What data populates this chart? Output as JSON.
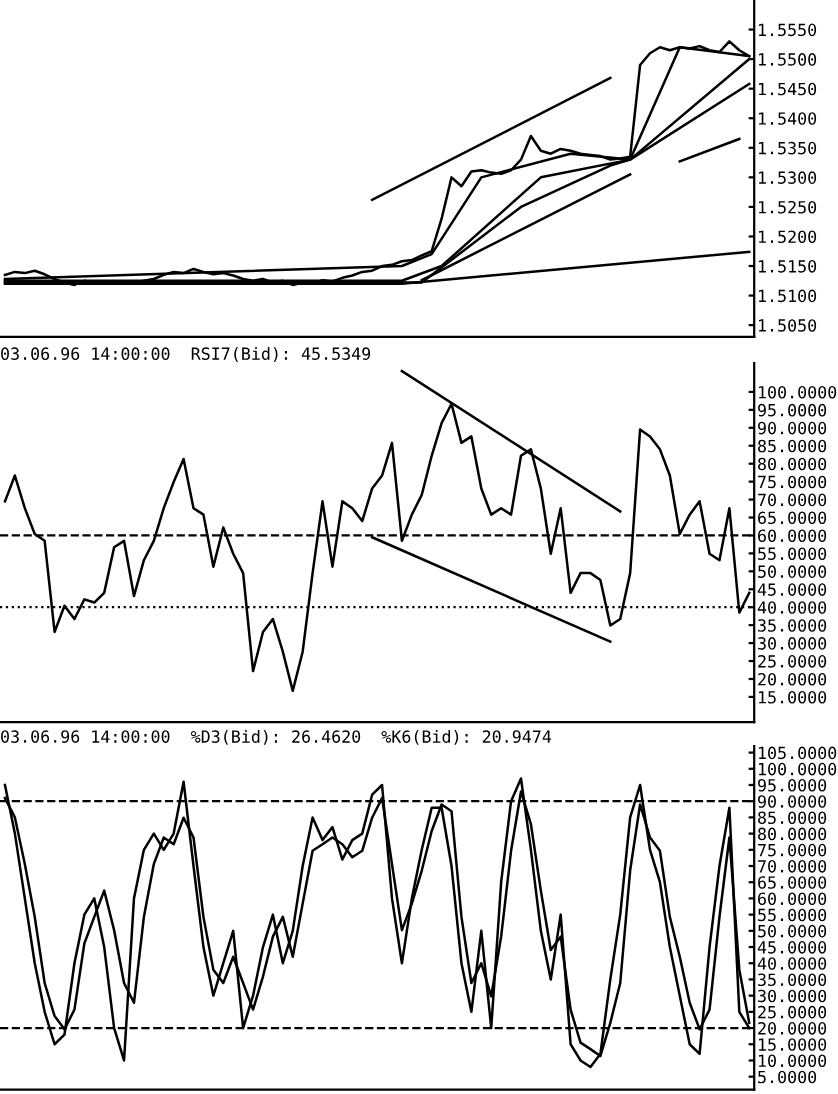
{
  "chart_data": [
    {
      "type": "line",
      "categories": [
        null,
        null,
        null,
        null,
        null,
        null,
        null,
        null,
        null,
        null,
        null,
        null,
        null,
        null,
        null,
        null,
        null,
        null,
        null,
        null,
        null,
        null,
        null,
        null,
        null,
        null,
        null,
        null,
        null,
        null,
        null,
        null,
        null,
        null,
        null,
        null,
        null,
        null,
        null,
        null,
        null,
        null,
        null,
        null,
        null,
        null,
        null,
        null,
        null,
        null,
        null,
        null,
        null,
        null,
        null,
        null,
        null,
        null,
        null,
        null,
        null,
        null,
        null,
        null,
        null,
        null,
        null,
        null,
        null,
        null,
        null,
        null,
        null,
        null,
        null,
        null
      ],
      "series": [
        {
          "color": "#000000",
          "values": [
            1.5135,
            1.514,
            1.5138,
            1.5142,
            1.5136,
            1.5128,
            1.5122,
            1.5118,
            1.5125,
            1.5122,
            1.5124,
            1.512,
            1.5122,
            1.512,
            1.5125,
            1.5128,
            1.5135,
            1.514,
            1.5138,
            1.5145,
            1.514,
            1.5136,
            1.5138,
            1.5134,
            1.5128,
            1.5125,
            1.5128,
            1.5122,
            1.5125,
            1.5118,
            1.5122,
            1.512,
            1.5126,
            1.5124,
            1.513,
            1.5134,
            1.514,
            1.5142,
            1.515,
            1.5152,
            1.5158,
            1.516,
            1.5168,
            1.5175,
            1.523,
            1.53,
            1.5285,
            1.531,
            1.5312,
            1.5308,
            1.5306,
            1.5312,
            1.533,
            1.537,
            1.5345,
            1.534,
            1.5348,
            1.5345,
            1.534,
            1.5338,
            1.5336,
            1.533,
            1.5332,
            1.5335,
            1.549,
            1.551,
            1.552,
            1.5515,
            1.552,
            1.5518,
            1.5522,
            1.5515,
            1.5512,
            1.553,
            1.5515,
            1.5505
          ]
        },
        {
          "color": "#000000",
          "values": [
            1.5128,
            null,
            null,
            null,
            null,
            null,
            null,
            null,
            null,
            null,
            null,
            null,
            null,
            null,
            null,
            null,
            null,
            null,
            null,
            null,
            null,
            null,
            null,
            null,
            null,
            null,
            null,
            null,
            null,
            null,
            null,
            null,
            null,
            null,
            null,
            null,
            null,
            null,
            null,
            null,
            1.515,
            null,
            null,
            1.517,
            null,
            null,
            null,
            null,
            1.53,
            null,
            null,
            null,
            null,
            null,
            null,
            null,
            null,
            1.534,
            null,
            null,
            null,
            null,
            null,
            1.533,
            null,
            null,
            null,
            null,
            1.552,
            null,
            null,
            null,
            null,
            null,
            null,
            1.5505
          ]
        },
        {
          "color": "#000000",
          "values": [
            1.5125,
            null,
            null,
            null,
            null,
            null,
            null,
            null,
            null,
            null,
            null,
            null,
            null,
            null,
            null,
            null,
            null,
            null,
            null,
            null,
            null,
            null,
            null,
            null,
            null,
            null,
            null,
            null,
            null,
            null,
            null,
            null,
            null,
            null,
            null,
            null,
            null,
            null,
            null,
            null,
            1.5125,
            null,
            null,
            null,
            1.515,
            null,
            null,
            null,
            null,
            null,
            null,
            null,
            null,
            null,
            1.53,
            null,
            null,
            null,
            null,
            null,
            null,
            null,
            null,
            1.533,
            null,
            null,
            null,
            null,
            null,
            null,
            null,
            null,
            null,
            null,
            null,
            1.55
          ]
        },
        {
          "color": "#000000",
          "values": [
            1.5122,
            null,
            null,
            null,
            null,
            null,
            null,
            null,
            null,
            null,
            null,
            null,
            null,
            null,
            null,
            null,
            null,
            null,
            null,
            null,
            null,
            null,
            null,
            null,
            null,
            null,
            null,
            null,
            null,
            null,
            null,
            null,
            null,
            null,
            null,
            null,
            null,
            null,
            null,
            null,
            null,
            null,
            1.5122,
            null,
            null,
            null,
            null,
            null,
            null,
            null,
            null,
            null,
            1.525,
            null,
            null,
            null,
            null,
            null,
            null,
            null,
            null,
            1.532,
            null,
            1.533,
            null,
            null,
            null,
            null,
            null,
            null,
            null,
            null,
            null,
            null,
            null,
            1.5458
          ]
        },
        {
          "color": "#000000",
          "values": [
            1.512,
            null,
            null,
            null,
            null,
            null,
            null,
            null,
            null,
            null,
            null,
            null,
            null,
            null,
            null,
            null,
            null,
            null,
            null,
            null,
            null,
            null,
            null,
            null,
            null,
            null,
            null,
            null,
            null,
            null,
            null,
            null,
            null,
            null,
            null,
            null,
            null,
            null,
            null,
            null,
            1.512,
            null,
            null,
            null,
            null,
            null,
            null,
            null,
            null,
            null,
            null,
            null,
            null,
            null,
            null,
            null,
            null,
            null,
            null,
            null,
            null,
            null,
            null,
            null,
            null,
            null,
            null,
            null,
            null,
            null,
            null,
            null,
            null,
            null,
            null,
            1.5174
          ]
        },
        {
          "color": "#000000",
          "values": [
            null,
            null,
            null,
            null,
            null,
            null,
            null,
            null,
            null,
            null,
            null,
            null,
            null,
            null,
            null,
            null,
            null,
            null,
            null,
            null,
            null,
            null,
            null,
            null,
            null,
            null,
            null,
            null,
            null,
            null,
            null,
            null,
            null,
            null,
            null,
            null,
            null,
            1.5262,
            null,
            null,
            null,
            null,
            null,
            null,
            null,
            null,
            null,
            null,
            null,
            null,
            null,
            null,
            null,
            null,
            null,
            null,
            null,
            null,
            null,
            null,
            null,
            1.5468,
            null,
            null,
            null,
            null,
            null,
            null,
            null,
            null,
            null,
            null,
            null,
            null,
            null,
            null
          ]
        },
        {
          "color": "#000000",
          "values": [
            null,
            null,
            null,
            null,
            null,
            null,
            null,
            null,
            null,
            null,
            null,
            null,
            null,
            null,
            null,
            null,
            null,
            null,
            null,
            null,
            null,
            null,
            null,
            null,
            null,
            null,
            null,
            null,
            null,
            null,
            null,
            null,
            null,
            null,
            null,
            null,
            null,
            null,
            null,
            null,
            null,
            null,
            1.5126,
            null,
            null,
            null,
            null,
            null,
            null,
            null,
            null,
            null,
            null,
            null,
            null,
            null,
            null,
            null,
            null,
            null,
            null,
            null,
            null,
            1.5305,
            null,
            null,
            null,
            null,
            null,
            null,
            null,
            null,
            null,
            null,
            null,
            null
          ]
        },
        {
          "color": "#000000",
          "values": [
            null,
            null,
            null,
            null,
            null,
            null,
            null,
            null,
            null,
            null,
            null,
            null,
            null,
            null,
            null,
            null,
            null,
            null,
            null,
            null,
            null,
            null,
            null,
            null,
            null,
            null,
            null,
            null,
            null,
            null,
            null,
            null,
            null,
            null,
            null,
            null,
            null,
            null,
            null,
            null,
            null,
            null,
            null,
            null,
            null,
            null,
            null,
            null,
            null,
            null,
            null,
            null,
            null,
            null,
            null,
            null,
            null,
            null,
            null,
            null,
            null,
            null,
            null,
            null,
            null,
            null,
            null,
            null,
            1.5327,
            null,
            null,
            null,
            null,
            null,
            1.5365,
            null
          ]
        }
      ],
      "ylim": [
        1.503,
        1.56
      ],
      "yticks": [
        {
          "value": 1.505,
          "label": "1.5050"
        },
        {
          "value": 1.51,
          "label": "1.5100"
        },
        {
          "value": 1.515,
          "label": "1.5150"
        },
        {
          "value": 1.52,
          "label": "1.5200"
        },
        {
          "value": 1.525,
          "label": "1.5250"
        },
        {
          "value": 1.53,
          "label": "1.5300"
        },
        {
          "value": 1.535,
          "label": "1.5350"
        },
        {
          "value": 1.54,
          "label": "1.5400"
        },
        {
          "value": 1.545,
          "label": "1.5450"
        },
        {
          "value": 1.55,
          "label": "1.5500"
        },
        {
          "value": 1.555,
          "label": "1.5550"
        }
      ],
      "tick_labels": "y"
    },
    {
      "type": "line",
      "title": "03.06.96 14:00:00  RSI7(Bid): 45.5349",
      "categories": [
        null,
        null,
        null,
        null,
        null,
        null,
        null,
        null,
        null,
        null,
        null,
        null,
        null,
        null,
        null,
        null,
        null,
        null,
        null,
        null,
        null,
        null,
        null,
        null,
        null,
        null,
        null,
        null,
        null,
        null,
        null,
        null,
        null,
        null,
        null,
        null,
        null,
        null,
        null,
        null,
        null,
        null,
        null,
        null,
        null,
        null,
        null,
        null,
        null,
        null,
        null,
        null,
        null,
        null,
        null,
        null,
        null,
        null,
        null,
        null,
        null,
        null,
        null,
        null,
        null,
        null,
        null,
        null,
        null,
        null,
        null,
        null,
        null,
        null,
        null,
        null
      ],
      "series": [
        {
          "color": "#000000",
          "values": [
            69.5,
            76.7,
            67.6,
            60.4,
            58.5,
            33.1,
            40.4,
            36.7,
            42.2,
            41.3,
            44,
            56.7,
            58.5,
            43.1,
            53.1,
            58.5,
            67.6,
            74.9,
            81.3,
            67.6,
            65.8,
            51.3,
            62.2,
            54.9,
            49.5,
            22.2,
            33.1,
            36.7,
            27.6,
            16.7,
            27.6,
            49.5,
            69.5,
            51.3,
            69.5,
            67.6,
            64,
            73.1,
            76.7,
            85.8,
            58.5,
            65.8,
            71.3,
            82.2,
            91.3,
            96.7,
            85.8,
            87.6,
            73.1,
            65.8,
            67.6,
            65.8,
            82.2,
            84,
            73.1,
            54.9,
            67.6,
            44,
            49.5,
            49.5,
            47.6,
            34.9,
            36.7,
            49.5,
            89.5,
            87.6,
            84,
            76.7,
            60.4,
            65.8,
            69.5,
            54.9,
            53.1,
            67.6,
            38.5,
            44
          ]
        },
        {
          "color": "#000000",
          "values": [
            null,
            null,
            null,
            null,
            null,
            null,
            null,
            null,
            null,
            null,
            null,
            null,
            null,
            null,
            null,
            null,
            null,
            null,
            null,
            null,
            null,
            null,
            null,
            null,
            null,
            null,
            null,
            null,
            null,
            null,
            null,
            null,
            null,
            null,
            null,
            null,
            null,
            null,
            null,
            null,
            105.8,
            null,
            null,
            null,
            null,
            null,
            null,
            null,
            null,
            null,
            null,
            null,
            null,
            null,
            null,
            null,
            null,
            null,
            null,
            null,
            null,
            null,
            66.7,
            null,
            null,
            null,
            null,
            null,
            null,
            null,
            null,
            null,
            null,
            null,
            null,
            null
          ]
        },
        {
          "color": "#000000",
          "values": [
            null,
            null,
            null,
            null,
            null,
            null,
            null,
            null,
            null,
            null,
            null,
            null,
            null,
            null,
            null,
            null,
            null,
            null,
            null,
            null,
            null,
            null,
            null,
            null,
            null,
            null,
            null,
            null,
            null,
            null,
            null,
            null,
            null,
            null,
            null,
            null,
            null,
            59.5,
            null,
            null,
            null,
            null,
            null,
            null,
            null,
            null,
            null,
            null,
            null,
            null,
            null,
            null,
            null,
            null,
            null,
            null,
            null,
            null,
            null,
            null,
            null,
            30.4,
            null,
            null,
            null,
            null,
            null,
            null,
            null,
            null,
            null,
            null,
            null,
            null,
            null,
            null
          ]
        }
      ],
      "ref_lines": [
        {
          "axis": "y",
          "value": 60,
          "color": "#000000",
          "line_style": "dashed"
        },
        {
          "axis": "y",
          "value": 40,
          "color": "#000000",
          "line_style": "dotted"
        }
      ],
      "ylim": [
        8,
        108
      ],
      "yticks": [
        {
          "value": 15,
          "label": "15.0000"
        },
        {
          "value": 20,
          "label": "20.0000"
        },
        {
          "value": 25,
          "label": "25.0000"
        },
        {
          "value": 30,
          "label": "30.0000"
        },
        {
          "value": 35,
          "label": "35.0000"
        },
        {
          "value": 40,
          "label": "40.0000"
        },
        {
          "value": 45,
          "label": "45.0000"
        },
        {
          "value": 50,
          "label": "50.0000"
        },
        {
          "value": 55,
          "label": "55.0000"
        },
        {
          "value": 60,
          "label": "60.0000"
        },
        {
          "value": 65,
          "label": "65.0000"
        },
        {
          "value": 70,
          "label": "70.0000"
        },
        {
          "value": 75,
          "label": "75.0000"
        },
        {
          "value": 80,
          "label": "80.0000"
        },
        {
          "value": 85,
          "label": "85.0000"
        },
        {
          "value": 90,
          "label": "90.0000"
        },
        {
          "value": 95,
          "label": "95.0000"
        },
        {
          "value": 100,
          "label": "100.0000"
        }
      ],
      "tick_labels": "y"
    },
    {
      "type": "line",
      "title": "03.06.96 14:00:00  %D3(Bid): 26.4620  %K6(Bid): 20.9474",
      "categories": [
        null,
        null,
        null,
        null,
        null,
        null,
        null,
        null,
        null,
        null,
        null,
        null,
        null,
        null,
        null,
        null,
        null,
        null,
        null,
        null,
        null,
        null,
        null,
        null,
        null,
        null,
        null,
        null,
        null,
        null,
        null,
        null,
        null,
        null,
        null,
        null,
        null,
        null,
        null,
        null,
        null,
        null,
        null,
        null,
        null,
        null,
        null,
        null,
        null,
        null,
        null,
        null,
        null,
        null,
        null,
        null,
        null,
        null,
        null,
        null,
        null,
        null,
        null,
        null,
        null,
        null,
        null,
        null,
        null,
        null,
        null,
        null,
        null,
        null,
        null,
        null
      ],
      "series": [
        {
          "color": "#000000",
          "values": [
            91,
            85,
            70.6,
            54.3,
            33.9,
            23.7,
            19.6,
            25.7,
            46.1,
            54.3,
            62.4,
            50.2,
            33.9,
            27.8,
            54.3,
            70.6,
            78.8,
            76.7,
            84.9,
            78.8,
            54.3,
            38,
            33.9,
            42,
            33.9,
            25.7,
            35.9,
            48.2,
            54.3,
            42,
            58.4,
            74.7,
            76.7,
            78.8,
            76.7,
            72.7,
            74.7,
            84.9,
            91,
            70.6,
            50.2,
            58.4,
            68.6,
            80.8,
            89,
            86.9,
            54.3,
            33.9,
            40,
            29.8,
            48.2,
            74.7,
            93,
            82.9,
            62.4,
            44.1,
            48.2,
            25.7,
            15.5,
            13.5,
            11.4,
            21.6,
            33.9,
            68.6,
            89,
            78.8,
            74.7,
            54.3,
            42,
            27.8,
            19.6,
            25.7,
            54.3,
            78.8,
            38,
            21.6
          ]
        },
        {
          "color": "#000000",
          "values": [
            95,
            80,
            60,
            40,
            25,
            15,
            18,
            40,
            55,
            60,
            45,
            20,
            10,
            60,
            75,
            80,
            75,
            80,
            96,
            70,
            45,
            30,
            40,
            50,
            20,
            30,
            45,
            55,
            40,
            50,
            70,
            85,
            78,
            82,
            72,
            78,
            80,
            92,
            95,
            60,
            40,
            60,
            75,
            88,
            88,
            70,
            40,
            25,
            50,
            20,
            65,
            90,
            97,
            75,
            50,
            35,
            55,
            15,
            10,
            8,
            12,
            35,
            55,
            85,
            95,
            75,
            65,
            45,
            30,
            15,
            12,
            45,
            70,
            88,
            25,
            20
          ]
        }
      ],
      "ref_lines": [
        {
          "axis": "y",
          "value": 90,
          "color": "#000000",
          "line_style": "dashed"
        },
        {
          "axis": "y",
          "value": 20,
          "color": "#000000",
          "line_style": "dashed"
        }
      ],
      "ylim": [
        1,
        107
      ],
      "yticks": [
        {
          "value": 5,
          "label": "5.0000"
        },
        {
          "value": 10,
          "label": "10.0000"
        },
        {
          "value": 15,
          "label": "15.0000"
        },
        {
          "value": 20,
          "label": "20.0000"
        },
        {
          "value": 25,
          "label": "25.0000"
        },
        {
          "value": 30,
          "label": "30.0000"
        },
        {
          "value": 35,
          "label": "35.0000"
        },
        {
          "value": 40,
          "label": "40.0000"
        },
        {
          "value": 45,
          "label": "45.0000"
        },
        {
          "value": 50,
          "label": "50.0000"
        },
        {
          "value": 55,
          "label": "55.0000"
        },
        {
          "value": 60,
          "label": "60.0000"
        },
        {
          "value": 65,
          "label": "65.0000"
        },
        {
          "value": 70,
          "label": "70.0000"
        },
        {
          "value": 75,
          "label": "75.0000"
        },
        {
          "value": 80,
          "label": "80.0000"
        },
        {
          "value": 85,
          "label": "85.0000"
        },
        {
          "value": 90,
          "label": "90.0000"
        },
        {
          "value": 95,
          "label": "95.0000"
        },
        {
          "value": 100,
          "label": "100.0000"
        },
        {
          "value": 105,
          "label": "105.0000"
        }
      ],
      "tick_labels": "y"
    }
  ]
}
